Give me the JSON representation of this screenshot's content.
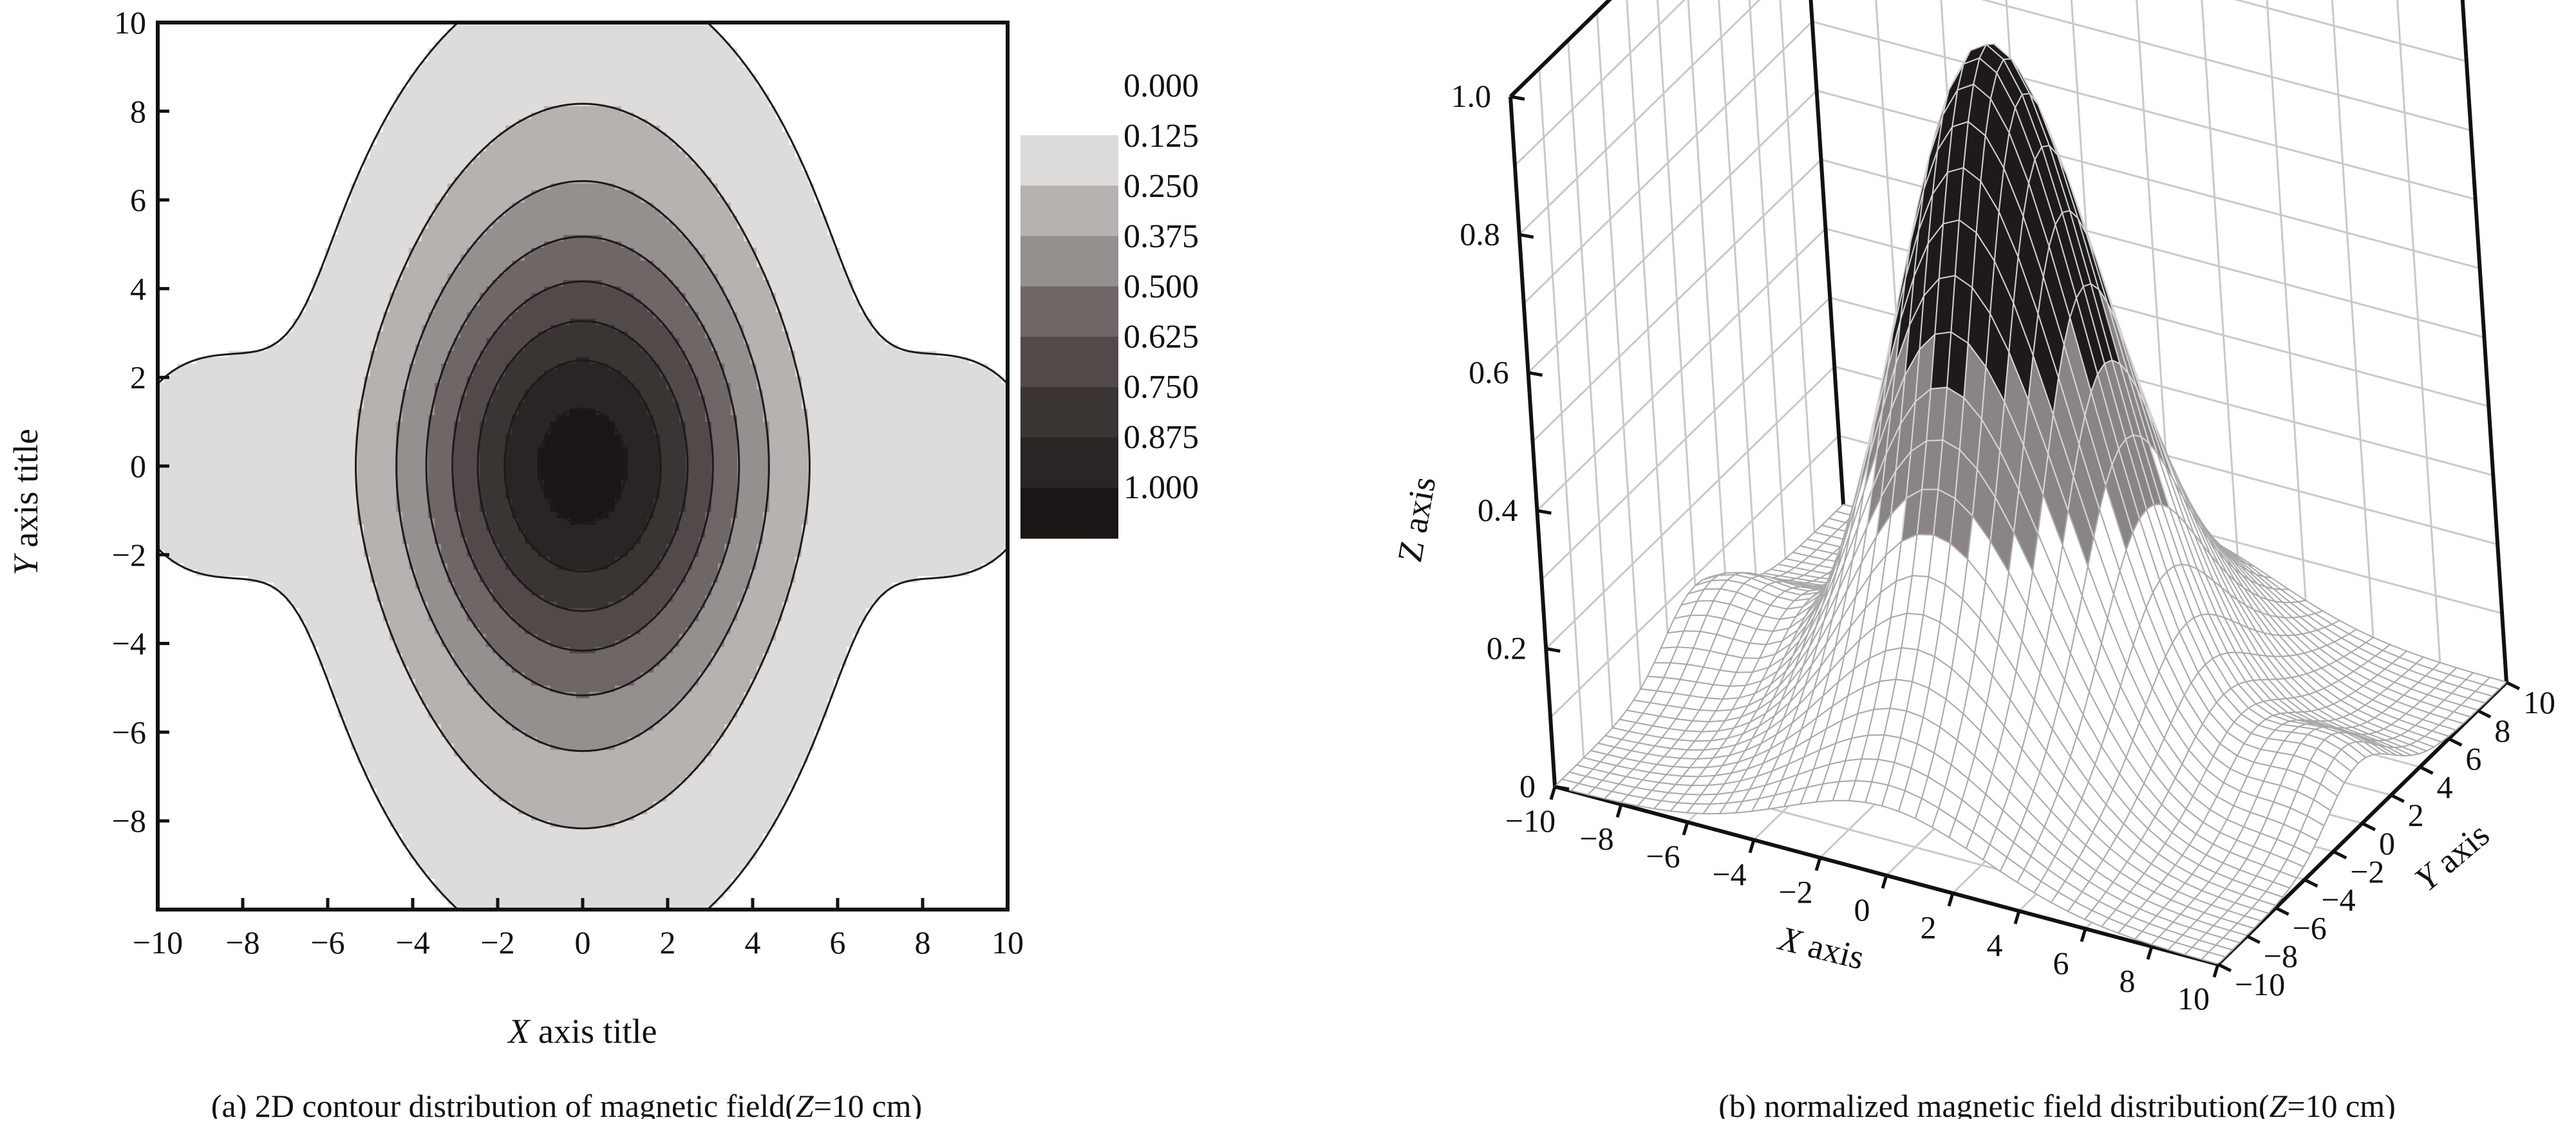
{
  "chart_data": [
    {
      "type": "contour",
      "panel_label": "(a)",
      "caption_parts": [
        "(a) 2D contour distribution of magnetic field(",
        "Z",
        "=10 cm)"
      ],
      "xlabel_parts": [
        "X",
        " axis title"
      ],
      "ylabel_parts": [
        "Y",
        " axis title"
      ],
      "xlim": [
        -10,
        10
      ],
      "ylim": [
        -10,
        10
      ],
      "x_ticks": [
        "−10",
        "−8",
        "−6",
        "−4",
        "−2",
        "0",
        "2",
        "4",
        "6",
        "8",
        "10"
      ],
      "y_ticks": [
        "−8",
        "−6",
        "−4",
        "−2",
        "0",
        "2",
        "4",
        "6",
        "8",
        "10"
      ],
      "colorbar": {
        "levels": [
          "0.000",
          "0.125",
          "0.250",
          "0.375",
          "0.500",
          "0.625",
          "0.750",
          "0.875",
          "1.000"
        ],
        "colors": [
          "#ffffff",
          "#dedbdb",
          "#b7b1b0",
          "#958f8e",
          "#6f6766",
          "#524a49",
          "#3a3433",
          "#292524",
          "#1a1615"
        ]
      },
      "peak": {
        "x": 0,
        "y": 0,
        "value": 1.0
      }
    },
    {
      "type": "surface3d",
      "panel_label": "(b)",
      "caption_parts": [
        "(b) normalized magnetic field distribution(",
        "Z",
        "=10 cm)"
      ],
      "xlabel_parts": [
        "X",
        " axis"
      ],
      "ylabel_parts": [
        "Y",
        " axis"
      ],
      "zlabel": "Z axis",
      "xlim": [
        -10,
        10
      ],
      "ylim": [
        -10,
        10
      ],
      "zlim": [
        0,
        1.0
      ],
      "x_ticks": [
        "−10",
        "−8",
        "−6",
        "−4",
        "−2",
        "0",
        "2",
        "4",
        "6",
        "8",
        "10"
      ],
      "y_ticks": [
        "−10",
        "−8",
        "−6",
        "−4",
        "−2",
        "0",
        "2",
        "4",
        "6",
        "8",
        "10"
      ],
      "z_ticks": [
        "0",
        "0.2",
        "0.4",
        "0.6",
        "0.8",
        "1.0"
      ],
      "peak": {
        "x": 0,
        "y": 0,
        "value": 1.0
      }
    }
  ]
}
